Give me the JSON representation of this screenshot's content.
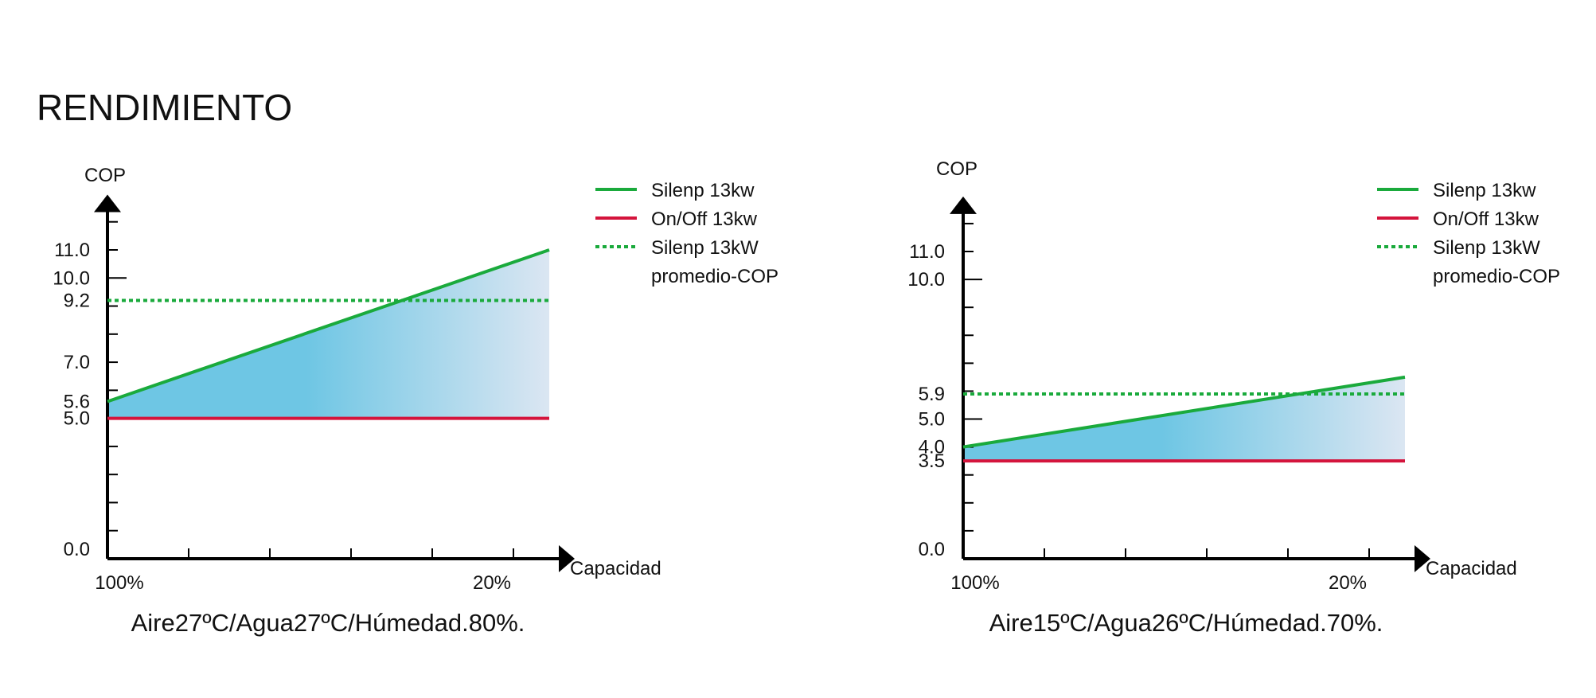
{
  "page": {
    "title": "RENDIMIENTO"
  },
  "legend_labels": {
    "silenp": "Silenp 13kw",
    "onoff": "On/Off 13kw",
    "avg_line1": "Silenp 13kW",
    "avg_line2": "promedio-COP"
  },
  "colors": {
    "silenp": "#1aaa3c",
    "onoff": "#d4143c",
    "average": "#1aaa3c",
    "fill_start": "#6ec6e4",
    "fill_end": "#dbe6f2",
    "axis": "#000000"
  },
  "chart_data": [
    {
      "type": "line",
      "ylabel": "COP",
      "xlabel": "Capacidad",
      "x_tick_labels": [
        "100%",
        "20%"
      ],
      "y_ticks": [
        {
          "value": 0.0,
          "label": "0.0"
        },
        {
          "value": 5.0,
          "label": "5.0"
        },
        {
          "value": 5.6,
          "label": "5.6"
        },
        {
          "value": 7.0,
          "label": "7.0"
        },
        {
          "value": 9.2,
          "label": "9.2"
        },
        {
          "value": 10.0,
          "label": "10.0"
        },
        {
          "value": 11.0,
          "label": "11.0"
        }
      ],
      "ylim": [
        0,
        12.8
      ],
      "series": [
        {
          "name": "Silenp 13kw",
          "values": [
            5.6,
            11.0
          ],
          "style": "solid",
          "color": "#1aaa3c"
        },
        {
          "name": "On/Off 13kw",
          "values": [
            5.0,
            5.0
          ],
          "style": "solid",
          "color": "#d4143c"
        },
        {
          "name": "Silenp 13kW promedio-COP",
          "values": [
            9.2,
            9.2
          ],
          "style": "dotted",
          "color": "#1aaa3c"
        }
      ],
      "caption": "Aire27ºC/Agua27ºC/Húmedad.80%.",
      "legend": "top-right"
    },
    {
      "type": "line",
      "ylabel": "COP",
      "xlabel": "Capacidad",
      "x_tick_labels": [
        "100%",
        "20%"
      ],
      "y_ticks": [
        {
          "value": 0.0,
          "label": "0.0"
        },
        {
          "value": 3.5,
          "label": "3.5"
        },
        {
          "value": 4.0,
          "label": "4.0"
        },
        {
          "value": 5.0,
          "label": "5.0"
        },
        {
          "value": 5.9,
          "label": "5.9"
        },
        {
          "value": 10.0,
          "label": "10.0"
        },
        {
          "value": 11.0,
          "label": "11.0"
        }
      ],
      "ylim": [
        0,
        12.8
      ],
      "series": [
        {
          "name": "Silenp 13kw",
          "values": [
            4.0,
            6.5
          ],
          "style": "solid",
          "color": "#1aaa3c"
        },
        {
          "name": "On/Off 13kw",
          "values": [
            3.5,
            3.5
          ],
          "style": "solid",
          "color": "#d4143c"
        },
        {
          "name": "Silenp 13kW promedio-COP",
          "values": [
            5.9,
            5.9
          ],
          "style": "dotted",
          "color": "#1aaa3c"
        }
      ],
      "caption": "Aire15ºC/Agua26ºC/Húmedad.70%.",
      "legend": "top-right"
    }
  ]
}
